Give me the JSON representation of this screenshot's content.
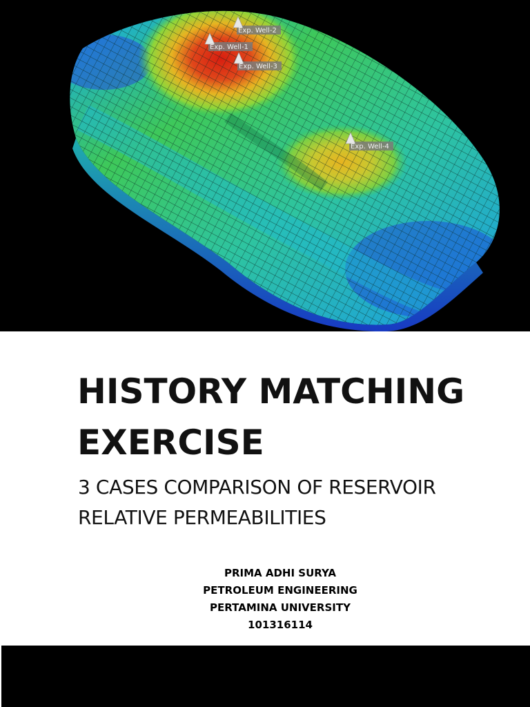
{
  "cover_image": {
    "icon": "reservoir-3d-grid-model",
    "wells": [
      {
        "label": "Exp. Well-2"
      },
      {
        "label": "Exp. Well-1"
      },
      {
        "label": "Exp. Well-3"
      },
      {
        "label": "Exp. Well-4"
      }
    ],
    "colors": {
      "high": "#d81e10",
      "mid_high": "#e6b422",
      "mid": "#3ec85a",
      "low_mid": "#20b8c8",
      "low": "#1f3fd8"
    }
  },
  "title": {
    "line1": "HISTORY MATCHING",
    "line2": "EXERCISE"
  },
  "subtitle": {
    "line1": "3 CASES COMPARISON OF RESERVOIR",
    "line2": "RELATIVE PERMEABILITIES"
  },
  "author": {
    "name": "PRIMA ADHI SURYA",
    "department": "PETROLEUM ENGINEERING",
    "university": "PERTAMINA UNIVERSITY",
    "student_id": "101316114"
  }
}
